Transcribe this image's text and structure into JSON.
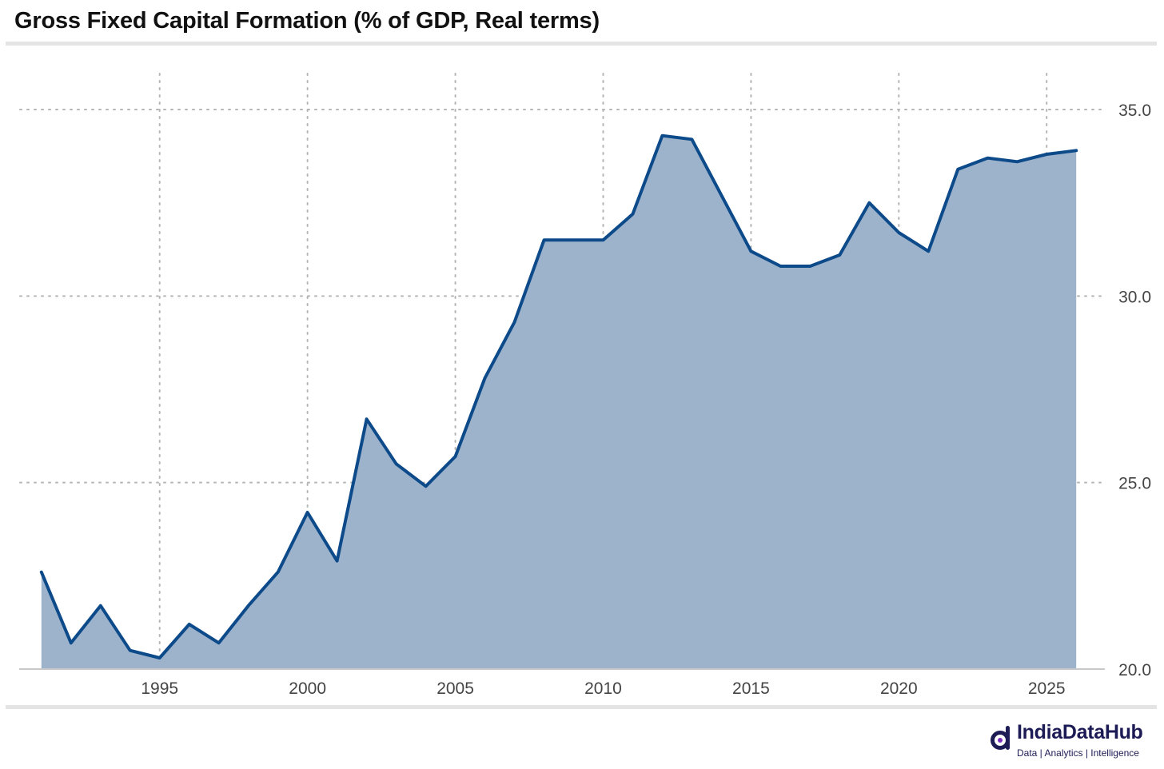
{
  "title": "Gross Fixed Capital Formation (% of GDP, Real terms)",
  "brand": {
    "name": "IndiaDataHub",
    "tagline": "Data | Analytics | Intelligence",
    "color": "#1d1b55"
  },
  "colors": {
    "line": "#0d4a8a",
    "area": "#9db3cc",
    "grid": "#b5b5b5",
    "axis": "#c8c8c8",
    "tick_text": "#444444"
  },
  "chart_data": {
    "type": "area",
    "title": "Gross Fixed Capital Formation (% of GDP, Real terms)",
    "xlabel": "",
    "ylabel": "",
    "x": [
      1991,
      1992,
      1993,
      1994,
      1995,
      1996,
      1997,
      1998,
      1999,
      2000,
      2001,
      2002,
      2003,
      2004,
      2005,
      2006,
      2007,
      2008,
      2009,
      2010,
      2011,
      2012,
      2013,
      2014,
      2015,
      2016,
      2017,
      2018,
      2019,
      2020,
      2021,
      2022,
      2023,
      2024,
      2025,
      2026
    ],
    "series": [
      {
        "values": [
          22.6,
          20.7,
          21.7,
          20.5,
          20.3,
          21.2,
          20.7,
          21.7,
          22.6,
          24.2,
          22.9,
          26.7,
          25.5,
          24.9,
          25.7,
          27.8,
          29.3,
          31.5,
          31.5,
          31.5,
          32.2,
          34.3,
          34.2,
          32.7,
          31.2,
          30.8,
          30.8,
          31.1,
          32.5,
          31.7,
          31.2,
          33.4,
          33.7,
          33.6,
          33.8,
          33.9
        ]
      }
    ],
    "xlim": [
      1990.6,
      2026.4
    ],
    "ylim": [
      20.0,
      35.0
    ],
    "x_ticks": [
      "1995",
      "2000",
      "2005",
      "2010",
      "2015",
      "2020",
      "2025"
    ],
    "y_ticks": [
      "20.0",
      "25.0",
      "30.0",
      "35.0"
    ],
    "y_axis_side": "right",
    "grid": "dotted x and y"
  }
}
